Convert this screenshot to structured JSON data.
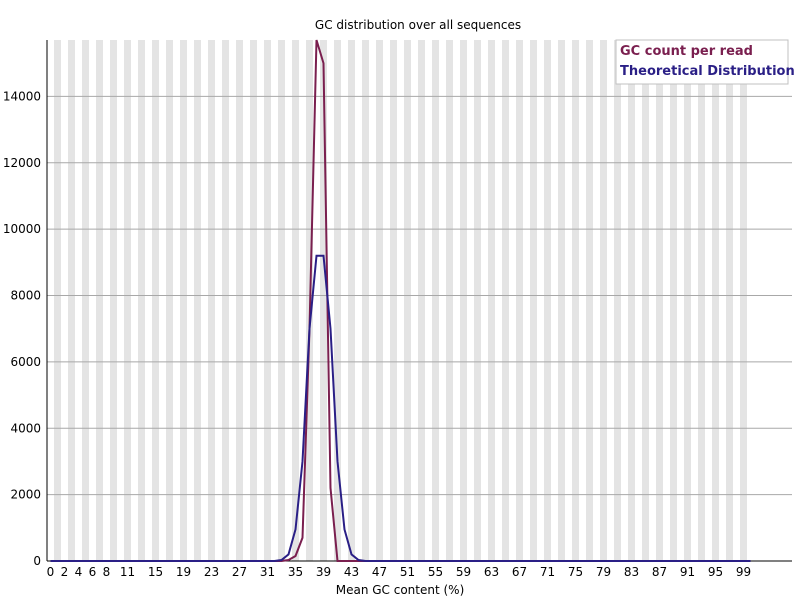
{
  "chart_data": {
    "type": "line",
    "title": "GC distribution over all sequences",
    "xlabel": "Mean GC content (%)",
    "ylabel": "",
    "xlim": [
      0,
      100
    ],
    "ylim": [
      0,
      15700
    ],
    "y_ticks": [
      0,
      2000,
      4000,
      6000,
      8000,
      10000,
      12000,
      14000
    ],
    "x_tick_labels": [
      "0",
      "2",
      "4",
      "6",
      "8",
      "11",
      "15",
      "19",
      "23",
      "27",
      "31",
      "35",
      "39",
      "43",
      "47",
      "51",
      "55",
      "59",
      "63",
      "67",
      "71",
      "75",
      "79",
      "83",
      "87",
      "91",
      "95",
      "99"
    ],
    "grid": true,
    "legend_position": "top-right",
    "series": [
      {
        "name": "GC count per read",
        "color": "#7a1f4f",
        "points": [
          [
            0,
            0
          ],
          [
            31,
            0
          ],
          [
            33,
            0
          ],
          [
            34,
            30
          ],
          [
            35,
            150
          ],
          [
            36,
            700
          ],
          [
            37,
            7000
          ],
          [
            38,
            15700
          ],
          [
            39,
            15000
          ],
          [
            40,
            2200
          ],
          [
            41,
            0
          ],
          [
            42,
            0
          ],
          [
            43,
            0
          ],
          [
            100,
            0
          ]
        ]
      },
      {
        "name": "Theoretical Distribution",
        "color": "#2a1f86",
        "points": [
          [
            0,
            0
          ],
          [
            32,
            0
          ],
          [
            33,
            30
          ],
          [
            34,
            200
          ],
          [
            35,
            950
          ],
          [
            36,
            3000
          ],
          [
            37,
            7000
          ],
          [
            38,
            9200
          ],
          [
            39,
            9200
          ],
          [
            40,
            7000
          ],
          [
            41,
            3000
          ],
          [
            42,
            950
          ],
          [
            43,
            200
          ],
          [
            44,
            30
          ],
          [
            45,
            0
          ],
          [
            100,
            0
          ]
        ]
      }
    ]
  }
}
